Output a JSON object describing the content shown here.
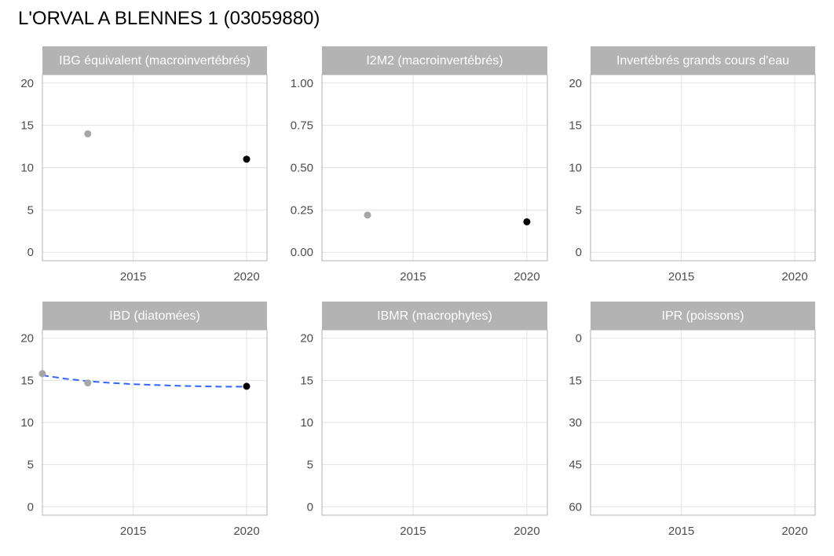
{
  "title": "L'ORVAL A BLENNES 1 (03059880)",
  "colors": {
    "strip_bg": "#b3b3b3",
    "strip_text": "#ffffff",
    "grid": "#e3e3e3",
    "panel_border": "#b3b3b3",
    "point_past": "#a6a6a6",
    "point_latest": "#000000",
    "trend": "#3366ff",
    "tick_text": "#4d4d4d"
  },
  "chart_data": [
    {
      "type": "scatter",
      "title": "IBG équivalent (macroinvertébrés)",
      "xlabel": "",
      "ylabel": "",
      "xlim": [
        2011,
        2020.9
      ],
      "xticks": [
        2015,
        2020
      ],
      "ylim": [
        -1,
        21
      ],
      "yticks": [
        0,
        5,
        10,
        15,
        20
      ],
      "reverse_y": false,
      "points": [
        {
          "x": 2013,
          "y": 14,
          "latest": false
        },
        {
          "x": 2020,
          "y": 11,
          "latest": true
        }
      ],
      "trend": []
    },
    {
      "type": "scatter",
      "title": "I2M2 (macroinvertébrés)",
      "xlabel": "",
      "ylabel": "",
      "xlim": [
        2011,
        2020.9
      ],
      "xticks": [
        2015,
        2020
      ],
      "ylim": [
        -0.05,
        1.05
      ],
      "yticks": [
        "0.00",
        "0.25",
        "0.50",
        "0.75",
        "1.00"
      ],
      "reverse_y": false,
      "points": [
        {
          "x": 2013,
          "y": 0.22,
          "latest": false
        },
        {
          "x": 2020,
          "y": 0.18,
          "latest": true
        }
      ],
      "trend": []
    },
    {
      "type": "scatter",
      "title": "Invertébrés grands cours d'eau",
      "xlabel": "",
      "ylabel": "",
      "xlim": [
        2011,
        2020.9
      ],
      "xticks": [
        2015,
        2020
      ],
      "ylim": [
        -1,
        21
      ],
      "yticks": [
        0,
        5,
        10,
        15,
        20
      ],
      "reverse_y": false,
      "points": [],
      "trend": []
    },
    {
      "type": "scatter",
      "title": "IBD (diatomées)",
      "xlabel": "",
      "ylabel": "",
      "xlim": [
        2011,
        2020.9
      ],
      "xticks": [
        2015,
        2020
      ],
      "ylim": [
        -1,
        21
      ],
      "yticks": [
        0,
        5,
        10,
        15,
        20
      ],
      "reverse_y": false,
      "points": [
        {
          "x": 2011,
          "y": 15.8,
          "latest": false
        },
        {
          "x": 2013,
          "y": 14.7,
          "latest": false
        },
        {
          "x": 2020,
          "y": 14.3,
          "latest": true
        }
      ],
      "trend": [
        {
          "x": 2011,
          "y": 15.6
        },
        {
          "x": 2012,
          "y": 15.2
        },
        {
          "x": 2013,
          "y": 14.9
        },
        {
          "x": 2014,
          "y": 14.7
        },
        {
          "x": 2015,
          "y": 14.55
        },
        {
          "x": 2016,
          "y": 14.45
        },
        {
          "x": 2017,
          "y": 14.35
        },
        {
          "x": 2018,
          "y": 14.3
        },
        {
          "x": 2019,
          "y": 14.25
        },
        {
          "x": 2020,
          "y": 14.25
        }
      ]
    },
    {
      "type": "scatter",
      "title": "IBMR (macrophytes)",
      "xlabel": "",
      "ylabel": "",
      "xlim": [
        2011,
        2020.9
      ],
      "xticks": [
        2015,
        2020
      ],
      "ylim": [
        -1,
        21
      ],
      "yticks": [
        0,
        5,
        10,
        15,
        20
      ],
      "reverse_y": false,
      "points": [],
      "trend": []
    },
    {
      "type": "scatter",
      "title": "IPR (poissons)",
      "xlabel": "",
      "ylabel": "",
      "xlim": [
        2011,
        2020.9
      ],
      "xticks": [
        2015,
        2020
      ],
      "ylim": [
        -3,
        63
      ],
      "yticks": [
        0,
        15,
        30,
        45,
        60
      ],
      "reverse_y": true,
      "points": [],
      "trend": []
    }
  ]
}
